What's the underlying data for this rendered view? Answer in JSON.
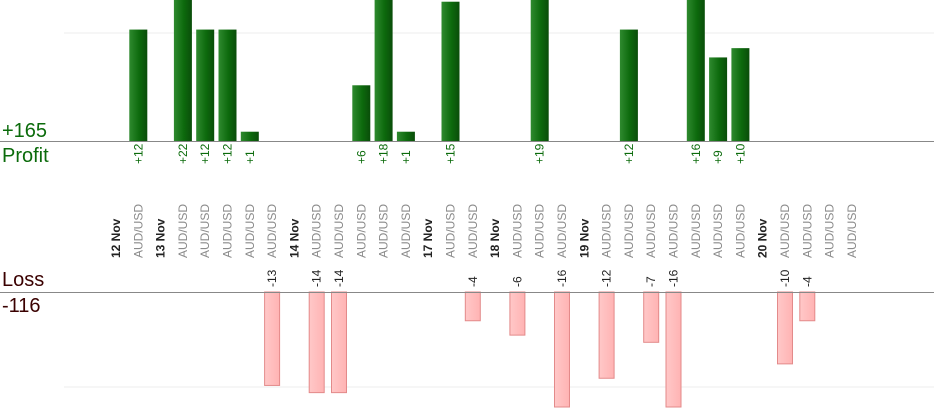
{
  "summary": {
    "profit_total": "+165",
    "profit_label": "Profit",
    "loss_label": "Loss",
    "loss_total": "-116"
  },
  "colors": {
    "profit_bar": "#0d6a0d",
    "profit_text": "#0b6b0b",
    "loss_bar": "#ffb3b3",
    "loss_border": "#e38a8a",
    "loss_text": "#3a0000",
    "axis": "#888888",
    "grid": "#eeeeee"
  },
  "chart_data": {
    "type": "bar",
    "symbol": "AUD/USD",
    "day_labels": [
      "12 Nov",
      "13 Nov",
      "14 Nov",
      "17 Nov",
      "18 Nov",
      "19 Nov",
      "20 Nov"
    ],
    "categories": [
      "12 Nov",
      "AUD/USD",
      "13 Nov",
      "AUD/USD",
      "AUD/USD",
      "AUD/USD",
      "AUD/USD",
      "AUD/USD",
      "14 Nov",
      "AUD/USD",
      "AUD/USD",
      "AUD/USD",
      "AUD/USD",
      "AUD/USD",
      "17 Nov",
      "AUD/USD",
      "AUD/USD",
      "18 Nov",
      "AUD/USD",
      "AUD/USD",
      "AUD/USD",
      "19 Nov",
      "AUD/USD",
      "AUD/USD",
      "AUD/USD",
      "AUD/USD",
      "AUD/USD",
      "AUD/USD",
      "AUD/USD",
      "20 Nov",
      "AUD/USD",
      "AUD/USD",
      "AUD/USD",
      "AUD/USD"
    ],
    "values": [
      null,
      12,
      null,
      22,
      12,
      12,
      1,
      -13,
      null,
      -14,
      -14,
      6,
      18,
      1,
      null,
      15,
      -4,
      null,
      -6,
      19,
      -16,
      null,
      -12,
      12,
      -7,
      -16,
      16,
      9,
      10,
      null,
      -10,
      -4,
      null,
      null
    ],
    "value_labels": [
      "",
      "+12",
      "",
      "+22",
      "+12",
      "+12",
      "+1",
      "-13",
      "",
      "-14",
      "-14",
      "+6",
      "+18",
      "+1",
      "",
      "+15",
      "-4",
      "",
      "-6",
      "+19",
      "-16",
      "",
      "-12",
      "+12",
      "-7",
      "-16",
      "+16",
      "+9",
      "+10",
      "",
      "-10",
      "-4",
      "",
      ""
    ],
    "profit_ylim": [
      0,
      14
    ],
    "loss_ylim": [
      -16,
      0
    ],
    "grid": true
  }
}
